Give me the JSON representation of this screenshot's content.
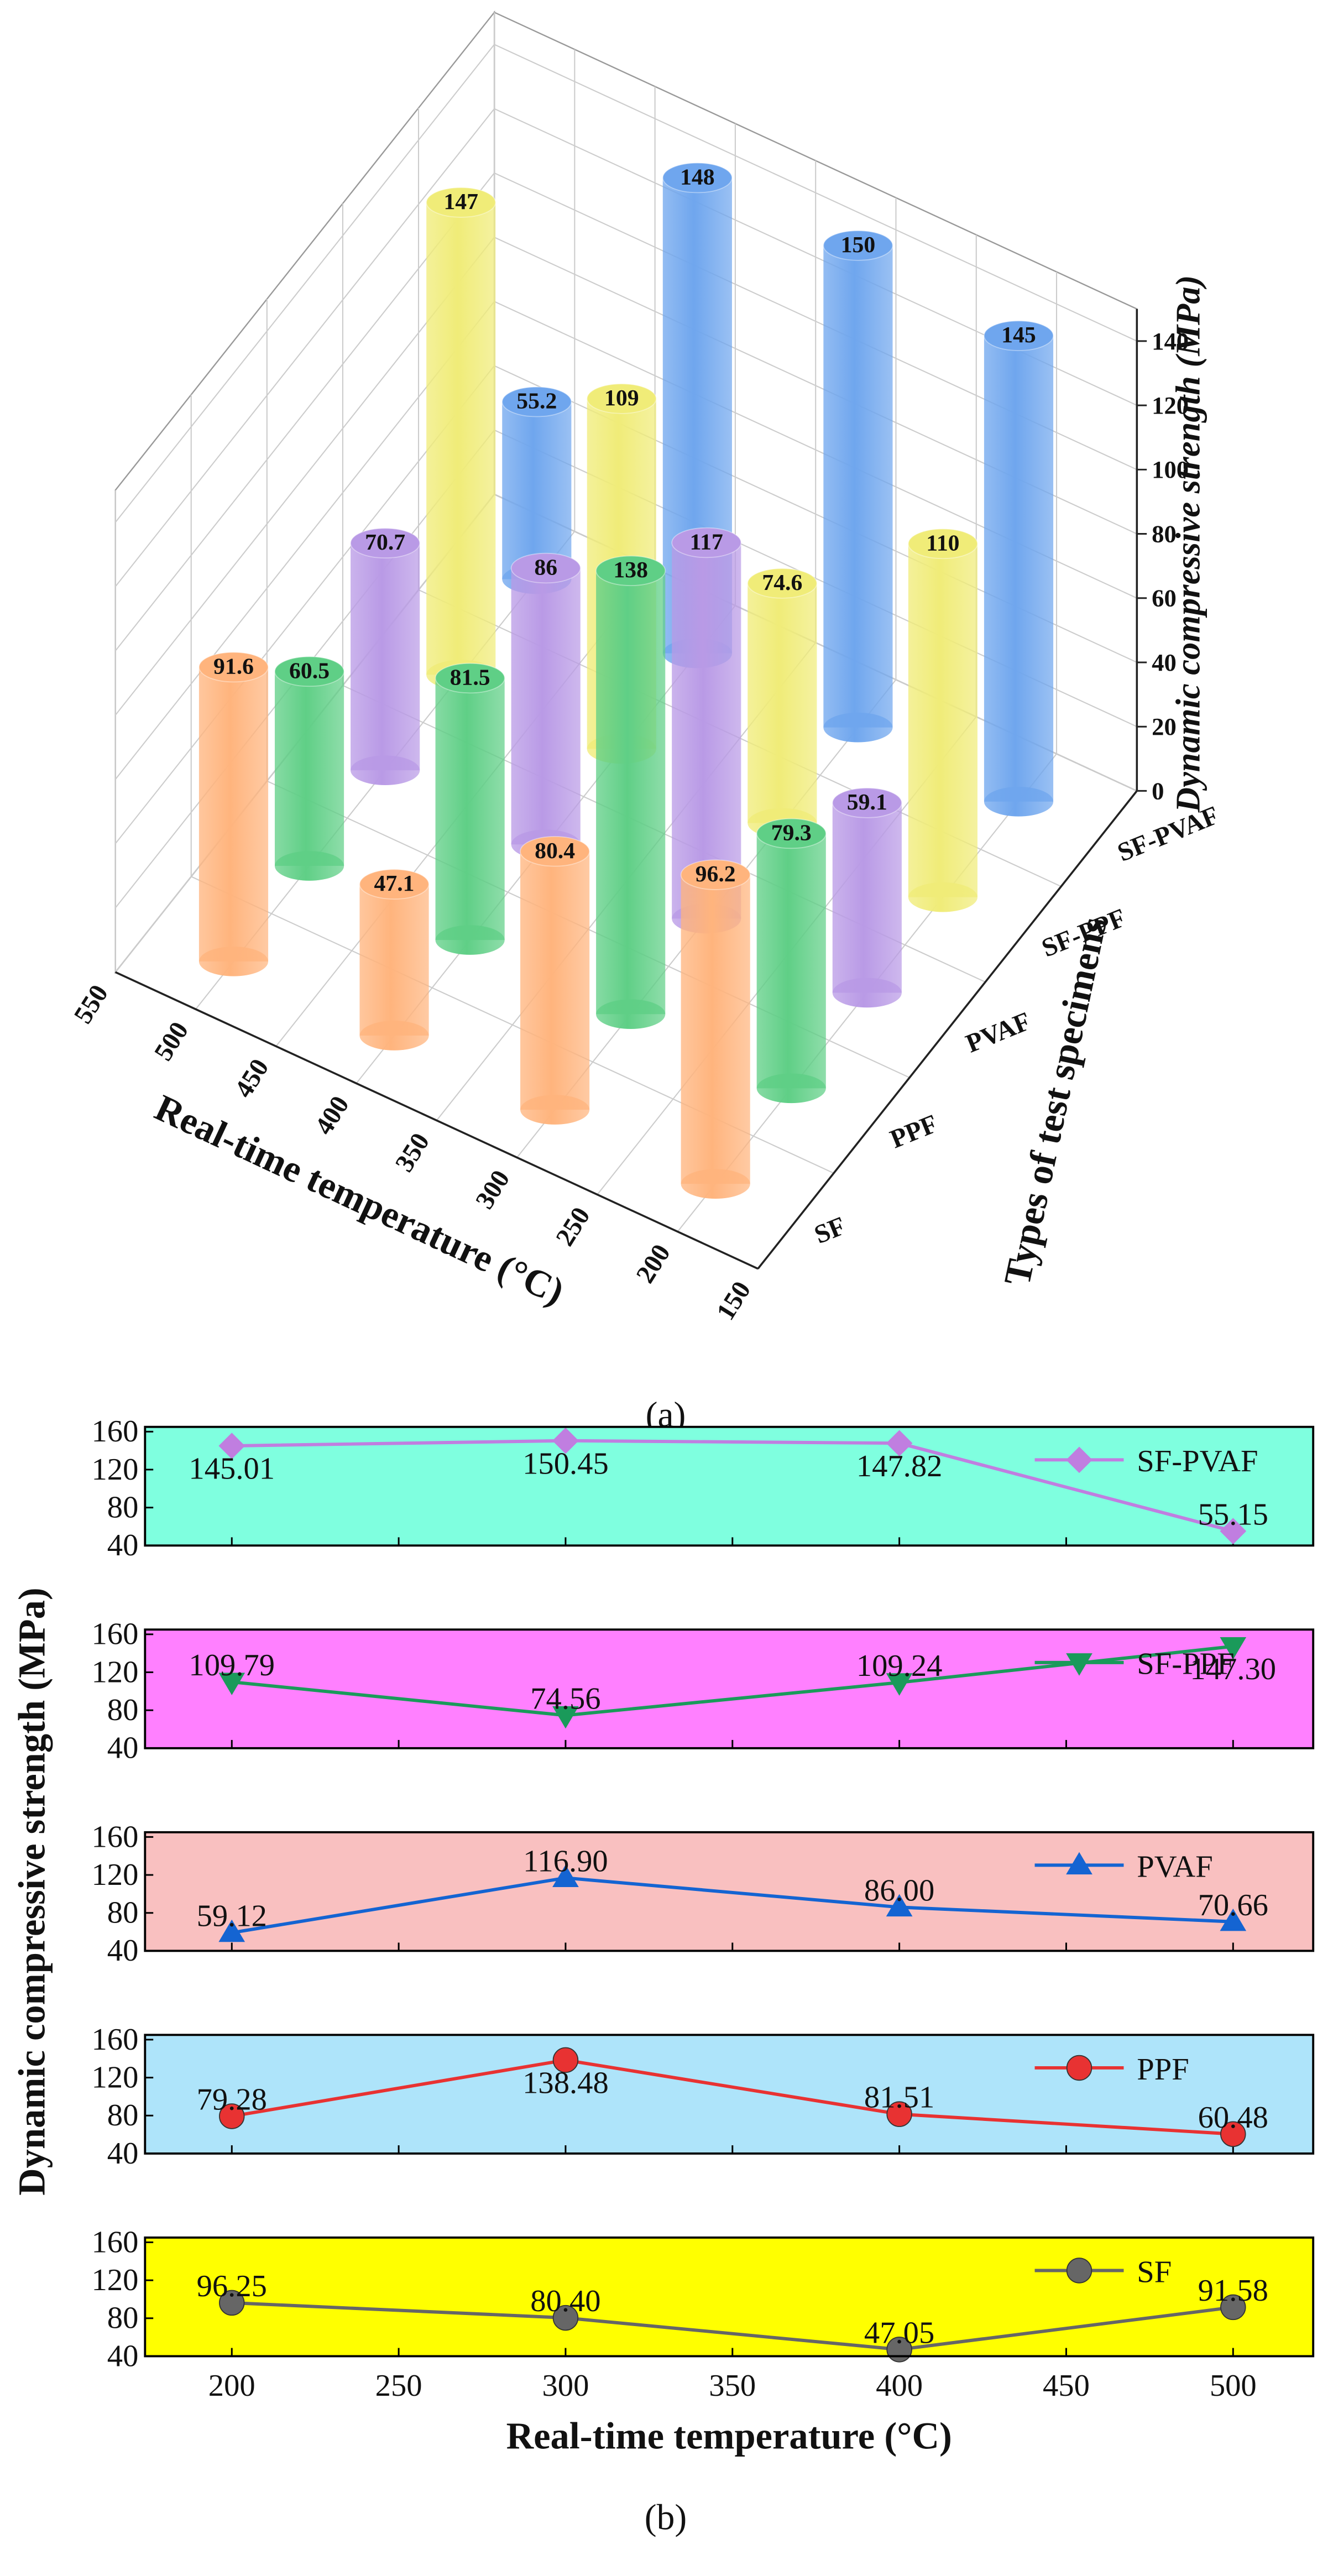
{
  "chart_data": [
    {
      "type": "bar3d",
      "x": [
        200,
        300,
        400,
        500
      ],
      "xlim": [
        150,
        550
      ],
      "xticks": [
        150,
        200,
        250,
        300,
        350,
        400,
        450,
        500,
        550
      ],
      "xlabel": "Real-time temperature (°C)",
      "ylabel": "Types of test specimens",
      "zlabel": "Dynamic compressive strength (MPa)",
      "zlim": [
        0,
        150
      ],
      "zticks": [
        0,
        20,
        40,
        60,
        80,
        100,
        120,
        140
      ],
      "caption": "(a)",
      "series": [
        {
          "name": "SF",
          "color": "#ffb47d",
          "values": [
            96.2,
            80.4,
            47.1,
            91.6
          ]
        },
        {
          "name": "PPF",
          "color": "#5fcf86",
          "values": [
            79.3,
            138,
            81.5,
            60.5
          ]
        },
        {
          "name": "PVAF",
          "color": "#b99ae6",
          "values": [
            59.1,
            117,
            86,
            70.7
          ]
        },
        {
          "name": "SF-PPF",
          "color": "#f0ec78",
          "values": [
            110,
            74.6,
            109,
            147
          ]
        },
        {
          "name": "SF-PVAF",
          "color": "#6fa6ee",
          "values": [
            145,
            150,
            148,
            55.2
          ]
        }
      ]
    },
    {
      "type": "line",
      "x": [
        200,
        300,
        400,
        500
      ],
      "xlim": [
        174,
        524
      ],
      "xticks": [
        200,
        250,
        300,
        350,
        400,
        450,
        500
      ],
      "xlabel": "Real-time temperature (°C)",
      "ylabel": "Dynamic compressive strength (MPa)",
      "caption": "(b)",
      "panels": [
        {
          "background": "#7fffdf",
          "ylim": [
            40,
            165
          ],
          "yticks": [
            40,
            80,
            120,
            160
          ],
          "series": [
            {
              "name": "SF-PVAF",
              "color": "#c07ee0",
              "marker": "diamond",
              "values": [
                145.01,
                150.45,
                147.82,
                55.15
              ],
              "value_labels": [
                "145.01",
                "150.45",
                "147.82",
                "55.15"
              ]
            }
          ]
        },
        {
          "background": "#ff80ff",
          "ylim": [
            40,
            165
          ],
          "yticks": [
            40,
            80,
            120,
            160
          ],
          "series": [
            {
              "name": "SF-PPF",
              "color": "#1a9a5a",
              "marker": "triangle-down",
              "values": [
                109.79,
                74.56,
                109.24,
                147.3
              ],
              "value_labels": [
                "109.79",
                "74.56",
                "109.24",
                "147.30"
              ]
            }
          ]
        },
        {
          "background": "#f9c0c0",
          "ylim": [
            40,
            165
          ],
          "yticks": [
            40,
            80,
            120,
            160
          ],
          "series": [
            {
              "name": "PVAF",
              "color": "#1464d2",
              "marker": "triangle-up",
              "values": [
                59.12,
                116.9,
                86,
                70.66
              ],
              "value_labels": [
                "59.12",
                "116.90",
                "86.00",
                "70.66"
              ]
            }
          ]
        },
        {
          "background": "#aee4fa",
          "ylim": [
            40,
            165
          ],
          "yticks": [
            40,
            80,
            120,
            160
          ],
          "series": [
            {
              "name": "PPF",
              "color": "#e83232",
              "marker": "circle",
              "values": [
                79.28,
                138.48,
                81.51,
                60.48
              ],
              "value_labels": [
                "79.28",
                "138.48",
                "81.51",
                "60.48"
              ]
            }
          ]
        },
        {
          "background": "#ffff00",
          "ylim": [
            40,
            165
          ],
          "yticks": [
            40,
            80,
            120,
            160
          ],
          "series": [
            {
              "name": "SF",
              "color": "#666666",
              "marker": "circle",
              "values": [
                96.25,
                80.4,
                47.05,
                91.58
              ],
              "value_labels": [
                "96.25",
                "80.40",
                "47.05",
                "91.58"
              ]
            }
          ]
        }
      ]
    }
  ]
}
